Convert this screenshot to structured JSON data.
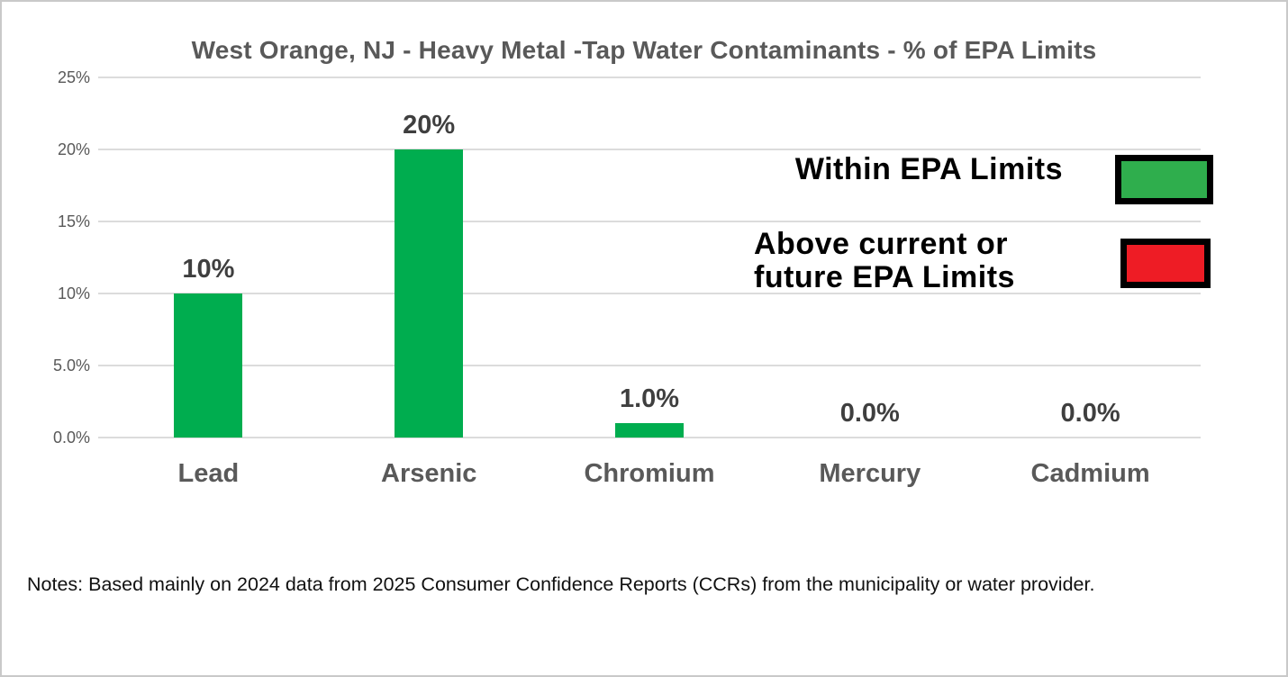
{
  "notes": "Notes: Based mainly on 2024 data from 2025 Consumer Confidence Reports (CCRs) from the municipality or water provider.",
  "chart_data": {
    "type": "bar",
    "title": "West Orange, NJ - Heavy Metal -Tap Water Contaminants - % of EPA Limits",
    "categories": [
      "Lead",
      "Arsenic",
      "Chromium",
      "Mercury",
      "Cadmium"
    ],
    "values": [
      10,
      20,
      1.0,
      0.0,
      0.0
    ],
    "value_labels": [
      "10%",
      "20%",
      "1.0%",
      "0.0%",
      "0.0%"
    ],
    "xlabel": "",
    "ylabel": "",
    "ylim": [
      0,
      25
    ],
    "ytick_interval": 5,
    "ytick_labels": [
      "25%",
      "20%",
      "15%",
      "10%",
      "5.0%",
      "0.0%"
    ],
    "grid": "horizontal",
    "gridline_color": "#DCDCDC",
    "bar_color": "#00AD4F",
    "legend_position": "inside-right",
    "legend": [
      {
        "label": "Within EPA Limits",
        "color": "#2FAE4D"
      },
      {
        "label": "Above current or\nfuture EPA Limits",
        "color": "#EE1C25"
      }
    ]
  }
}
